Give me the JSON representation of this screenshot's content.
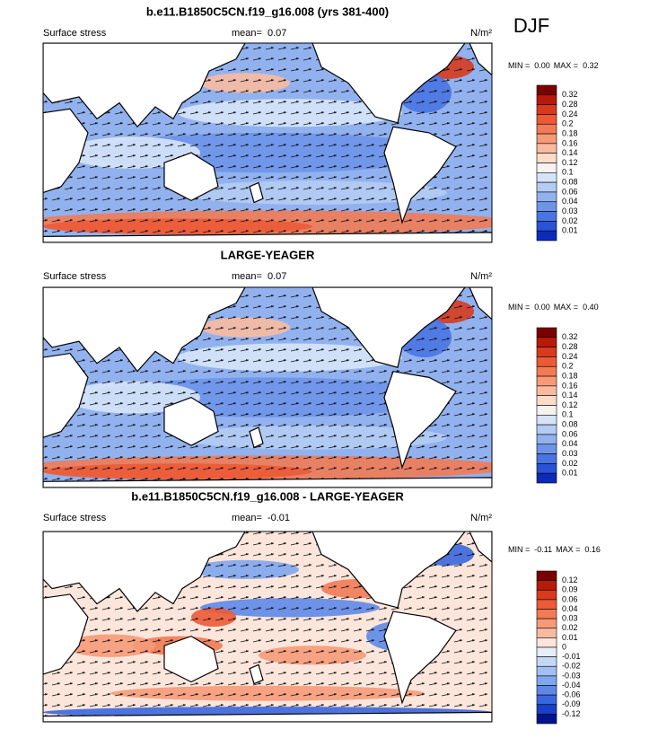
{
  "season": "DJF",
  "panels": [
    {
      "title": "b.e11.B1850C5CN.f19_g16.008 (yrs 381-400)",
      "label": "Surface stress",
      "mean_label": "mean=",
      "mean": "0.07",
      "units": "N/m²",
      "min_label": "MIN =",
      "min": "0.00",
      "max_label": "MAX =",
      "max": "0.32",
      "colorbar": {
        "labels": [
          "0.32",
          "0.28",
          "0.24",
          "0.2",
          "0.18",
          "0.16",
          "0.14",
          "0.12",
          "0.1",
          "0.08",
          "0.06",
          "0.04",
          "0.03",
          "0.02",
          "0.01"
        ],
        "colors": [
          "#7a0000",
          "#b81a08",
          "#d83a1c",
          "#ec5a36",
          "#f27a54",
          "#f69a78",
          "#f9bba0",
          "#fcdcc8",
          "#f6f2f0",
          "#d6e4f8",
          "#b4ccf4",
          "#92b2ef",
          "#6e94ea",
          "#4a74e2",
          "#2a52d6",
          "#0b2cb8"
        ]
      }
    },
    {
      "title": "LARGE-YEAGER",
      "label": "Surface stress",
      "mean_label": "mean=",
      "mean": "0.07",
      "units": "N/m²",
      "min_label": "MIN =",
      "min": "0.00",
      "max_label": "MAX =",
      "max": "0.40",
      "colorbar": {
        "labels": [
          "0.32",
          "0.28",
          "0.24",
          "0.2",
          "0.18",
          "0.16",
          "0.14",
          "0.12",
          "0.1",
          "0.08",
          "0.06",
          "0.04",
          "0.03",
          "0.02",
          "0.01"
        ],
        "colors": [
          "#7a0000",
          "#b81a08",
          "#d83a1c",
          "#ec5a36",
          "#f27a54",
          "#f69a78",
          "#f9bba0",
          "#fcdcc8",
          "#f6f2f0",
          "#d6e4f8",
          "#b4ccf4",
          "#92b2ef",
          "#6e94ea",
          "#4a74e2",
          "#2a52d6",
          "#0b2cb8"
        ]
      }
    },
    {
      "title": "b.e11.B1850C5CN.f19_g16.008 - LARGE-YEAGER",
      "label": "Surface stress",
      "mean_label": "mean=",
      "mean": "-0.01",
      "units": "N/m²",
      "min_label": "MIN =",
      "min": "-0.11",
      "max_label": "MAX =",
      "max": "0.16",
      "colorbar": {
        "labels": [
          "0.12",
          "0.09",
          "0.06",
          "0.04",
          "0.03",
          "0.02",
          "0.01",
          "0",
          "-0.01",
          "-0.02",
          "-0.03",
          "-0.04",
          "-0.06",
          "-0.09",
          "-0.12"
        ],
        "colors": [
          "#7a0000",
          "#b81a08",
          "#d83a1c",
          "#ec5a36",
          "#f27a54",
          "#f69a78",
          "#f9bba0",
          "#fce6dc",
          "#e6eefa",
          "#c4d8f6",
          "#a2c0f2",
          "#80a6ee",
          "#5e88e8",
          "#3a66de",
          "#1a40c8",
          "#00148c"
        ]
      }
    }
  ]
}
